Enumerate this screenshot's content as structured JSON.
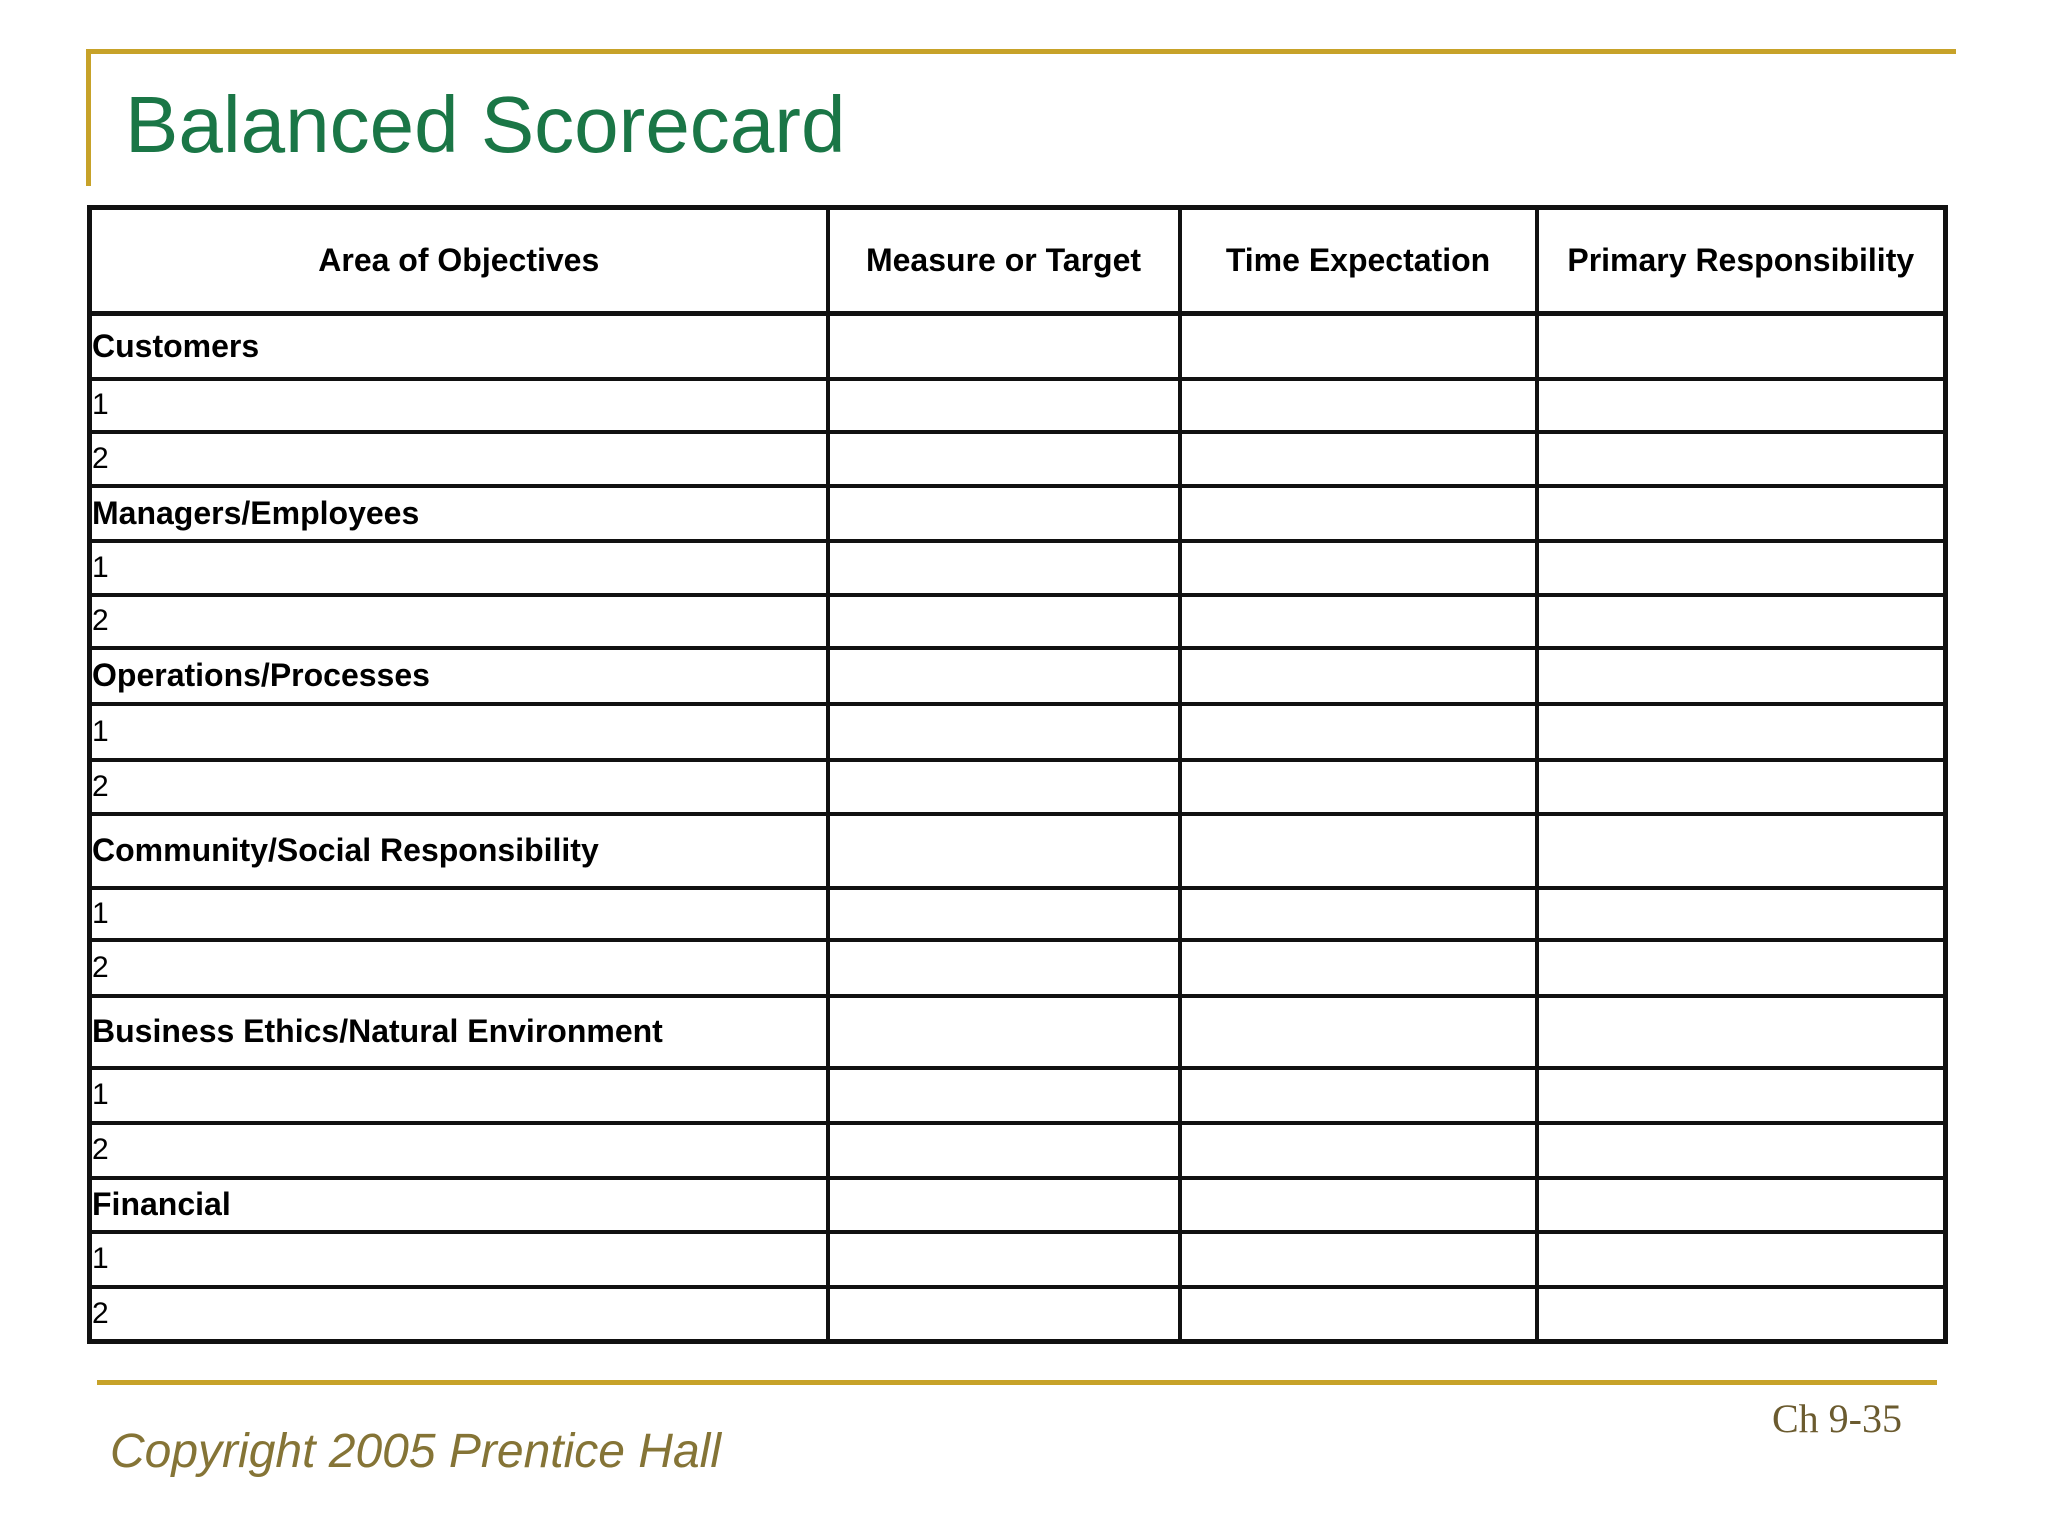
{
  "title": "Balanced Scorecard",
  "table": {
    "headers": [
      "Area of Objectives",
      "Measure or Target",
      "Time Expectation",
      "Primary Responsibility"
    ],
    "groups": [
      {
        "category": "Customers",
        "items": [
          "1",
          "2"
        ]
      },
      {
        "category": "Managers/Employees",
        "items": [
          "1",
          "2"
        ]
      },
      {
        "category": "Operations/Processes",
        "items": [
          "1",
          "2"
        ]
      },
      {
        "category": "Community/Social Responsibility",
        "items": [
          "1",
          "2"
        ]
      },
      {
        "category": "Business Ethics/Natural Environment",
        "items": [
          "1",
          "2"
        ]
      },
      {
        "category": "Financial",
        "items": [
          "1",
          "2"
        ]
      }
    ]
  },
  "footer": {
    "copyright": "Copyright 2005 Prentice Hall",
    "chapter_label": "Ch 9-35"
  },
  "colors": {
    "title_green": "#1A7646",
    "accent_gold": "#C7A229",
    "copyright_olive": "#857436",
    "chapter_brown": "#6B5B2F",
    "table_border": "#111111"
  }
}
